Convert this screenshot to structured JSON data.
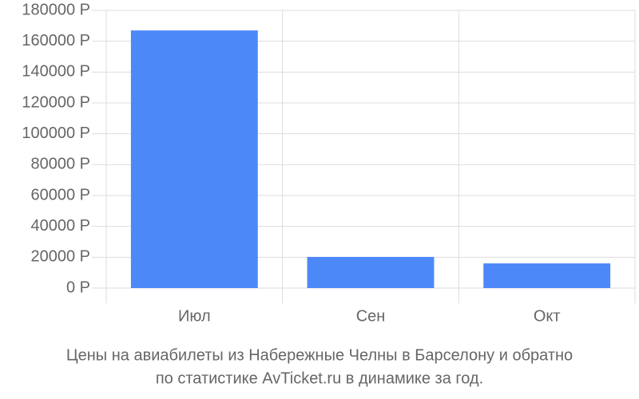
{
  "chart_data": {
    "type": "bar",
    "title": "Цены на авиабилеты из Набережные Челны в Барселону и обратно",
    "subtitle": "по статистике AvTicket.ru в динамике за год.",
    "categories": [
      "Июл",
      "Сен",
      "Окт"
    ],
    "values": [
      167000,
      20200,
      16000
    ],
    "color": "#4d88f8",
    "ylim": [
      0,
      180000
    ],
    "yticks": [
      {
        "value": 0,
        "label": "0 Р"
      },
      {
        "value": 20000,
        "label": "20000 Р"
      },
      {
        "value": 40000,
        "label": "40000 Р"
      },
      {
        "value": 60000,
        "label": "60000 Р"
      },
      {
        "value": 80000,
        "label": "80000 Р"
      },
      {
        "value": 100000,
        "label": "100000 Р"
      },
      {
        "value": 120000,
        "label": "120000 Р"
      },
      {
        "value": 140000,
        "label": "140000 Р"
      },
      {
        "value": 160000,
        "label": "160000 Р"
      },
      {
        "value": 180000,
        "label": "180000 Р"
      }
    ],
    "grid": true
  }
}
